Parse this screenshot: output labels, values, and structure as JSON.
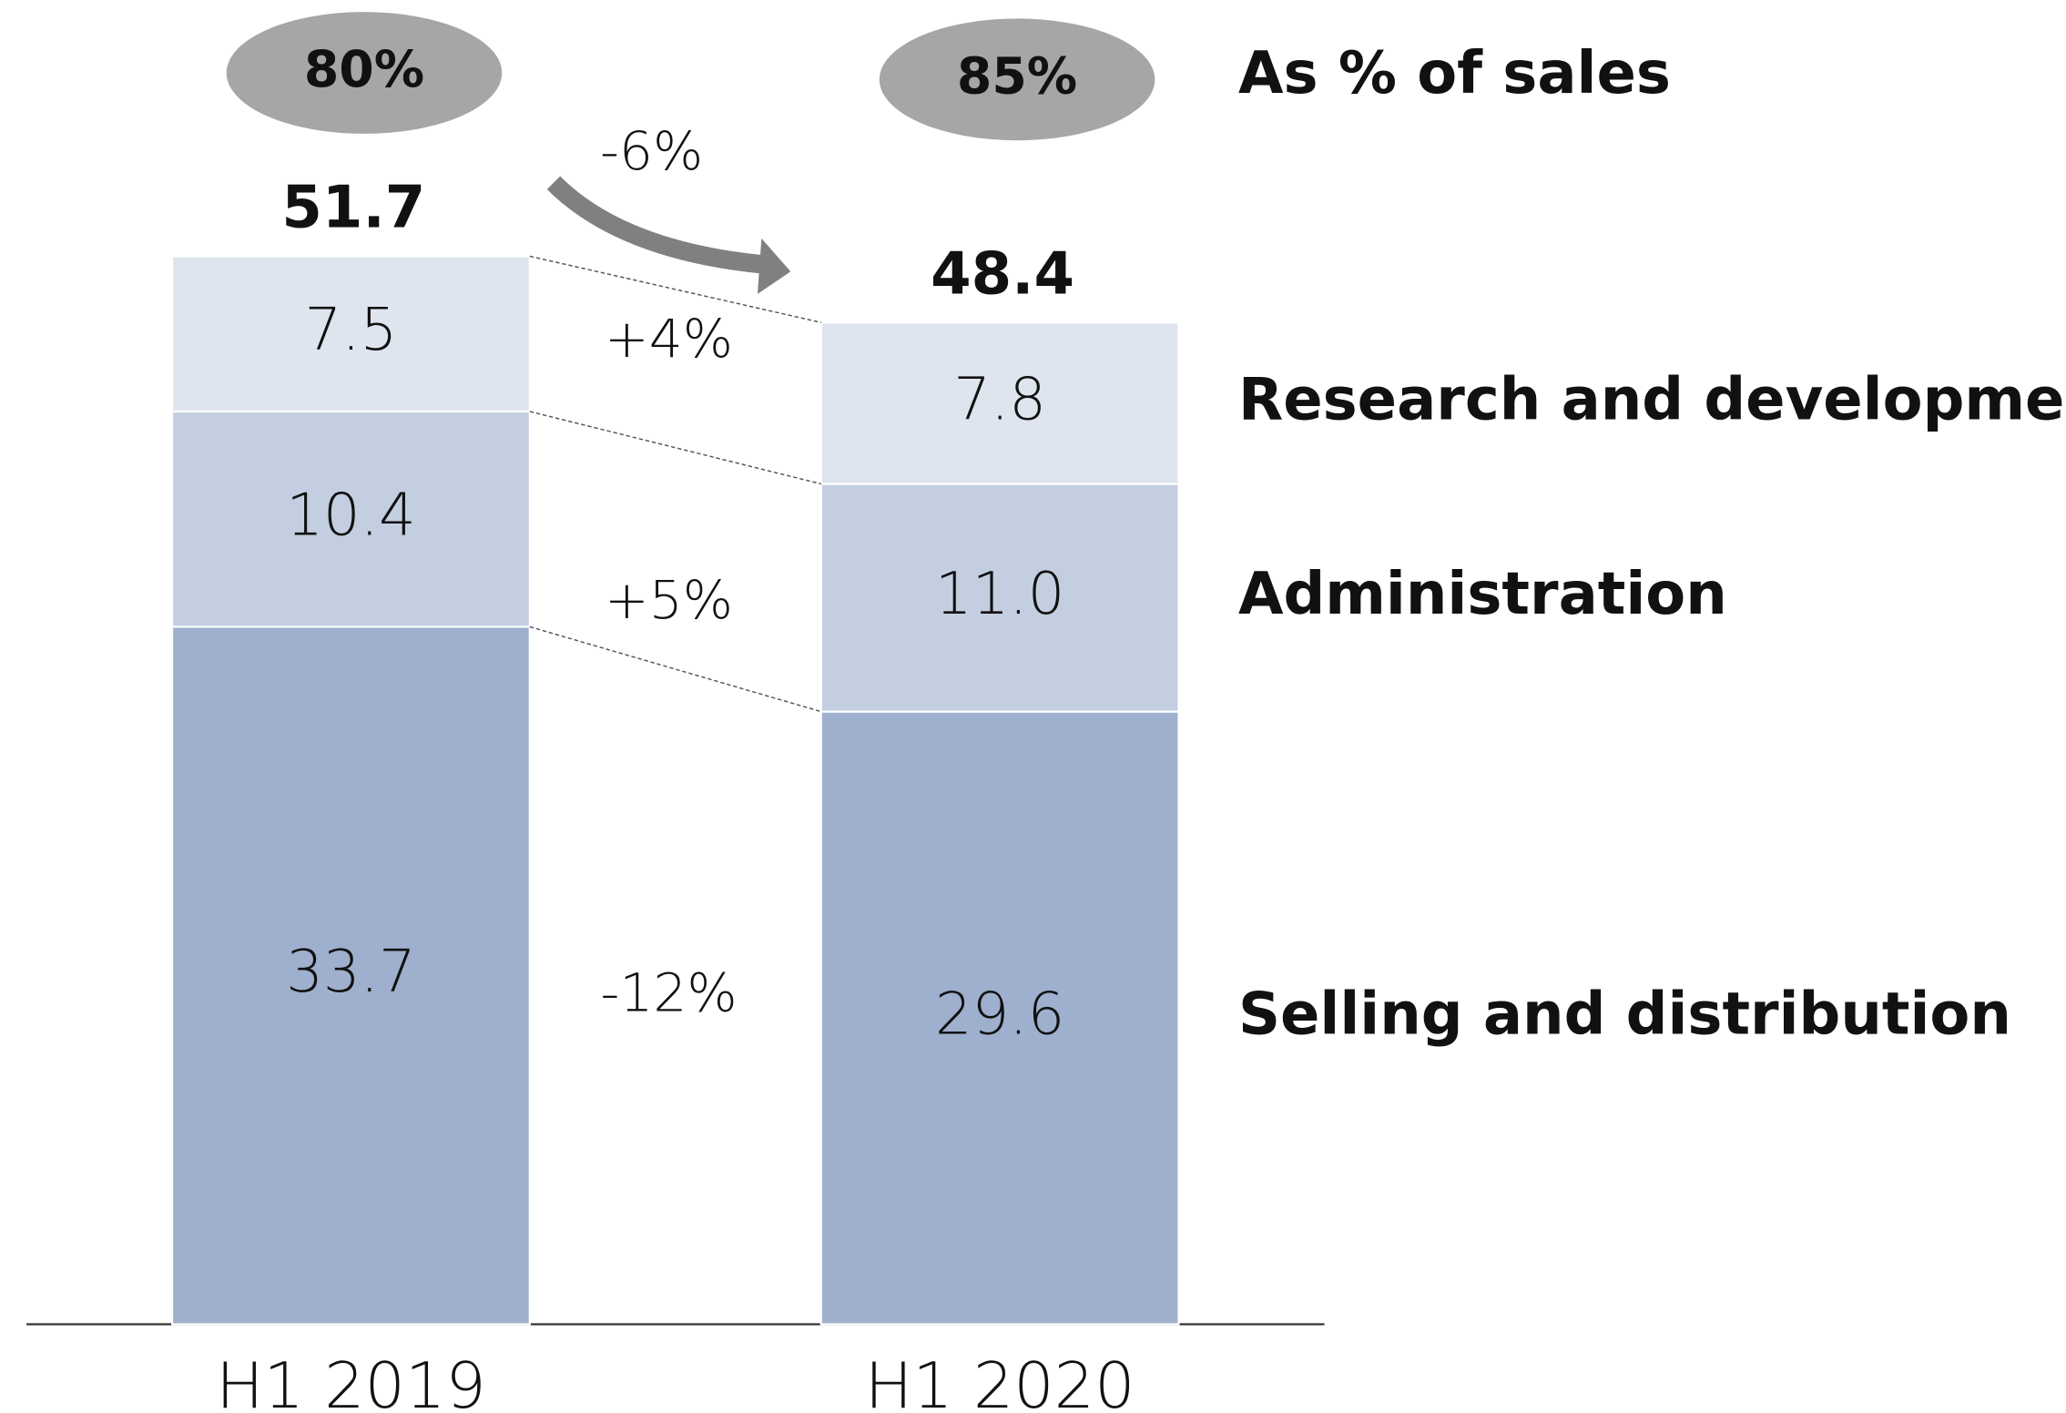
{
  "chart_data": {
    "type": "stacked_bar",
    "categories": [
      "H1 2019",
      "H1 2020"
    ],
    "series": [
      {
        "name": "Selling and distribution",
        "color": "#9eb0cd",
        "values": [
          33.7,
          29.6
        ]
      },
      {
        "name": "Administration",
        "color": "#c3cee0",
        "values": [
          10.4,
          11.0
        ],
        "value_labels": [
          "10.4",
          "11.0"
        ]
      },
      {
        "name": "Research and development",
        "color": "#dfe5ef",
        "values": [
          7.5,
          7.8
        ]
      }
    ],
    "totals": [
      51.7,
      48.4
    ],
    "share_of_sales": {
      "label": "As % of sales",
      "values": [
        80,
        85
      ],
      "value_labels": [
        "80%",
        "85%"
      ],
      "color": "#a6a6a6"
    },
    "changes": {
      "values": [
        -12,
        5,
        4
      ],
      "value_labels": [
        "-12%",
        "+5%",
        "+4%"
      ]
    },
    "total_change": {
      "value": -6,
      "label": "-6%"
    }
  }
}
